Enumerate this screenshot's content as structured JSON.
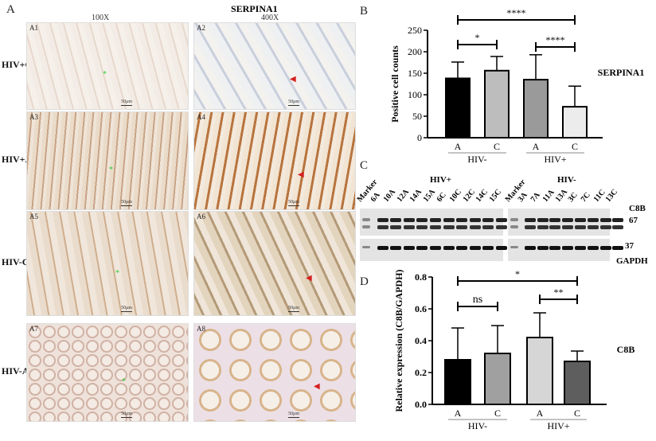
{
  "panelA": {
    "letter": "A",
    "title": "SERPINA1",
    "col_headers": [
      "100X",
      "400X"
    ],
    "rows": [
      "HIV+C",
      "HIV+A",
      "HIV-C",
      "HIV-A"
    ],
    "tiles": [
      "A1",
      "A2",
      "A3",
      "A4",
      "A5",
      "A6",
      "A7",
      "A8"
    ],
    "scale_bar": "50μm"
  },
  "panelC": {
    "letter": "C",
    "left_group": "HIV+",
    "right_group": "HIV-",
    "left_lanes": [
      "Marker",
      "6A",
      "10A",
      "12A",
      "14A",
      "15A",
      "6C",
      "10C",
      "12C",
      "14C",
      "15C"
    ],
    "right_lanes": [
      "Marker",
      "3A",
      "7A",
      "11A",
      "13A",
      "3C",
      "7C",
      "11C",
      "13C"
    ],
    "labels": {
      "c8b": "C8B",
      "kda67": "67",
      "kda37": "37",
      "gapdh": "GAPDH"
    }
  },
  "chart_data": [
    {
      "panel": "B",
      "type": "bar",
      "ylabel": "Positive cell counts",
      "side_label": "SERPINA1",
      "categories": [
        "A",
        "C",
        "A",
        "C"
      ],
      "groups": [
        "HIV-",
        "HIV-",
        "HIV+",
        "HIV+"
      ],
      "values": [
        138,
        156,
        135,
        72
      ],
      "error_upper": [
        176,
        189,
        193,
        120
      ],
      "colors": [
        "#000000",
        "#bdbdbd",
        "#9a9a9a",
        "#ececec"
      ],
      "ylim": [
        0,
        250
      ],
      "yticks": [
        0,
        50,
        100,
        150,
        200,
        250
      ],
      "significance": [
        {
          "from": 0,
          "to": 1,
          "label": "*"
        },
        {
          "from": 2,
          "to": 3,
          "label": "****"
        },
        {
          "from": 0,
          "to": 3,
          "label": "****"
        }
      ]
    },
    {
      "panel": "D",
      "type": "bar",
      "ylabel": "Relative expression (C8B/GAPDH)",
      "side_label": "C8B",
      "categories": [
        "A",
        "C",
        "A",
        "C"
      ],
      "groups": [
        "HIV-",
        "HIV-",
        "HIV+",
        "HIV+"
      ],
      "values": [
        0.28,
        0.32,
        0.42,
        0.27
      ],
      "error_upper": [
        0.48,
        0.495,
        0.575,
        0.335
      ],
      "colors": [
        "#000000",
        "#a0a0a0",
        "#d6d6d6",
        "#5e5e5e"
      ],
      "ylim": [
        0,
        0.8
      ],
      "yticks": [
        "0.0",
        "0.2",
        "0.4",
        "0.6",
        "0.8"
      ],
      "significance": [
        {
          "from": 0,
          "to": 1,
          "label": "ns"
        },
        {
          "from": 2,
          "to": 3,
          "label": "**"
        },
        {
          "from": 0,
          "to": 3,
          "label": "*"
        }
      ]
    }
  ]
}
